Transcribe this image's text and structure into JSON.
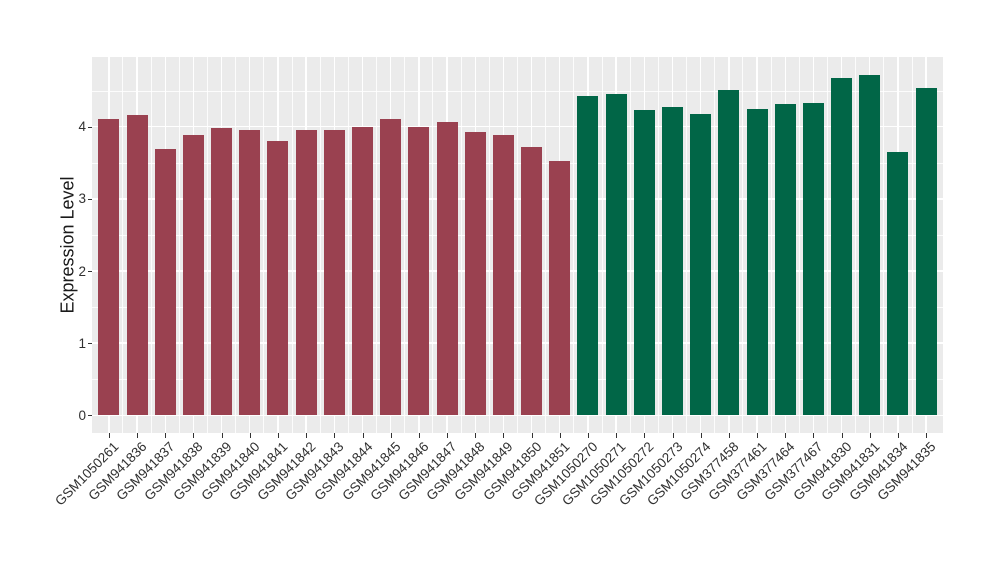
{
  "chart_data": {
    "type": "bar",
    "title": "",
    "xlabel": "",
    "ylabel": "Expression Level",
    "categories": [
      "GSM1050261",
      "GSM941836",
      "GSM941837",
      "GSM941838",
      "GSM941839",
      "GSM941840",
      "GSM941841",
      "GSM941842",
      "GSM941843",
      "GSM941844",
      "GSM941845",
      "GSM941846",
      "GSM941847",
      "GSM941848",
      "GSM941849",
      "GSM941850",
      "GSM941851",
      "GSM1050270",
      "GSM1050271",
      "GSM1050272",
      "GSM1050273",
      "GSM1050274",
      "GSM377458",
      "GSM377461",
      "GSM377464",
      "GSM377467",
      "GSM941830",
      "GSM941831",
      "GSM941834",
      "GSM941835"
    ],
    "values": [
      4.11,
      4.16,
      3.69,
      3.89,
      3.98,
      3.96,
      3.8,
      3.95,
      3.96,
      4.0,
      4.1,
      4.0,
      4.06,
      3.92,
      3.89,
      3.72,
      3.52,
      4.43,
      4.45,
      4.23,
      4.27,
      4.18,
      4.51,
      4.25,
      4.31,
      4.33,
      4.67,
      4.72,
      3.65,
      4.53
    ],
    "bar_groups": [
      {
        "color": "#9A4150",
        "start_index": 0,
        "end_index": 16
      },
      {
        "color": "#016647",
        "start_index": 17,
        "end_index": 29
      }
    ],
    "yticks": [
      0,
      1,
      2,
      3,
      4
    ],
    "ylim": [
      0,
      4.97
    ],
    "grid": "on",
    "legend": "none",
    "panel_background": "#EBEBEB",
    "grid_color": "#FFFFFF"
  }
}
